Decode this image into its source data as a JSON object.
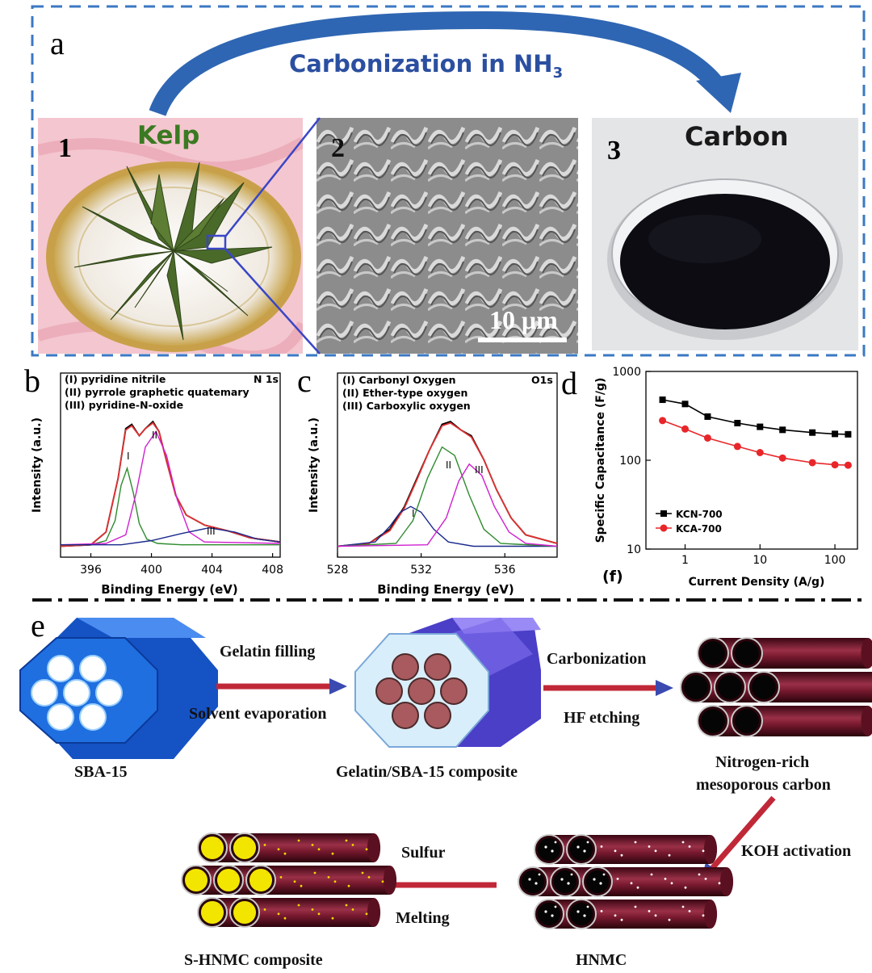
{
  "panel_a": {
    "letter": "a",
    "process": "Carbonization in NH",
    "process_sub": "3",
    "kelp": {
      "number": "1",
      "label": "Kelp"
    },
    "sem": {
      "number": "2",
      "scale": "10 μm"
    },
    "carbon": {
      "number": "3",
      "label": "Carbon"
    }
  },
  "chart_data": [
    {
      "type": "line",
      "panel": "b",
      "corner_label": "N 1s",
      "legend": [
        "(I) pyridine nitrile",
        "(II) pyrrole graphetic quatemary",
        "(III) pyridine-N-oxide"
      ],
      "xlabel": "Binding Energy (eV)",
      "ylabel": "Intensity (a.u.)",
      "x_ticks": [
        "396",
        "400",
        "404",
        "408"
      ],
      "peak_labels": [
        "I",
        "II",
        "III"
      ],
      "xlim": [
        394,
        408.5
      ],
      "series": [
        {
          "color": "#000000",
          "x": [
            394,
            396,
            397,
            397.8,
            398.3,
            398.7,
            399.2,
            399.6,
            400.1,
            400.5,
            401,
            401.6,
            402.3,
            403.5,
            405,
            406.5,
            408.5
          ],
          "y": [
            0.02,
            0.03,
            0.12,
            0.5,
            0.85,
            0.88,
            0.8,
            0.85,
            0.9,
            0.83,
            0.62,
            0.38,
            0.24,
            0.17,
            0.13,
            0.08,
            0.05
          ]
        },
        {
          "color": "#e03030",
          "x": [
            394,
            396,
            397,
            397.8,
            398.3,
            398.7,
            399.2,
            399.6,
            400.1,
            400.5,
            401,
            401.6,
            402.3,
            403.5,
            405,
            406.5,
            408.5
          ],
          "y": [
            0.02,
            0.03,
            0.12,
            0.5,
            0.84,
            0.87,
            0.8,
            0.85,
            0.89,
            0.83,
            0.62,
            0.38,
            0.24,
            0.17,
            0.13,
            0.08,
            0.05
          ]
        },
        {
          "color": "#2e8b2e",
          "x": [
            394,
            396,
            397,
            397.6,
            398,
            398.4,
            398.8,
            399.2,
            399.7,
            400.4,
            402,
            408.5
          ],
          "y": [
            0.03,
            0.03,
            0.06,
            0.2,
            0.45,
            0.57,
            0.4,
            0.18,
            0.07,
            0.04,
            0.03,
            0.03
          ]
        },
        {
          "color": "#d020d0",
          "x": [
            394,
            397,
            398.3,
            399,
            399.6,
            400.3,
            401,
            401.7,
            402.5,
            403.5,
            408.5
          ],
          "y": [
            0.03,
            0.04,
            0.1,
            0.4,
            0.72,
            0.83,
            0.66,
            0.35,
            0.12,
            0.05,
            0.04
          ]
        },
        {
          "color": "#1a2a8c",
          "x": [
            394,
            398,
            400,
            402,
            403.8,
            405.5,
            407,
            408.5
          ],
          "y": [
            0.03,
            0.03,
            0.06,
            0.11,
            0.15,
            0.12,
            0.07,
            0.05
          ]
        }
      ]
    },
    {
      "type": "line",
      "panel": "c",
      "corner_label": "O1s",
      "legend": [
        "(I) Carbonyl Oxygen",
        "(II) Ether-type oxygen",
        "(III) Carboxylic oxygen"
      ],
      "xlabel": "Binding Energy (eV)",
      "ylabel": "Intensity (a.u.)",
      "x_ticks": [
        "528",
        "532",
        "536"
      ],
      "peak_labels": [
        "I",
        "II",
        "III"
      ],
      "xlim": [
        528,
        538.5
      ],
      "series": [
        {
          "color": "#000000",
          "x": [
            528,
            529.5,
            530.5,
            531.2,
            531.8,
            532.4,
            533,
            533.4,
            533.9,
            534.4,
            535,
            535.6,
            536.3,
            537,
            538.5
          ],
          "y": [
            0.02,
            0.04,
            0.14,
            0.3,
            0.5,
            0.7,
            0.88,
            0.9,
            0.84,
            0.8,
            0.63,
            0.42,
            0.22,
            0.1,
            0.04
          ]
        },
        {
          "color": "#e03030",
          "x": [
            528,
            529.5,
            530.5,
            531.2,
            531.8,
            532.4,
            533,
            533.4,
            533.9,
            534.4,
            535,
            535.6,
            536.3,
            537,
            538.5
          ],
          "y": [
            0.02,
            0.04,
            0.13,
            0.29,
            0.49,
            0.7,
            0.87,
            0.89,
            0.84,
            0.79,
            0.63,
            0.42,
            0.22,
            0.1,
            0.04
          ]
        },
        {
          "color": "#1a2a8c",
          "x": [
            528,
            529.8,
            530.5,
            531,
            531.5,
            532,
            532.6,
            533.3,
            534.5,
            538.5
          ],
          "y": [
            0.02,
            0.05,
            0.16,
            0.26,
            0.3,
            0.26,
            0.14,
            0.05,
            0.02,
            0.02
          ]
        },
        {
          "color": "#2e8b2e",
          "x": [
            528,
            530.8,
            531.6,
            532.3,
            533,
            533.6,
            534.3,
            535,
            535.8,
            538.5
          ],
          "y": [
            0.02,
            0.04,
            0.2,
            0.5,
            0.72,
            0.66,
            0.38,
            0.14,
            0.04,
            0.02
          ]
        },
        {
          "color": "#d020d0",
          "x": [
            528,
            532.3,
            533.2,
            533.8,
            534.3,
            534.9,
            535.5,
            536.2,
            537,
            538.5
          ],
          "y": [
            0.02,
            0.03,
            0.22,
            0.48,
            0.6,
            0.52,
            0.3,
            0.12,
            0.04,
            0.02
          ]
        }
      ]
    },
    {
      "type": "line",
      "panel": "d",
      "sub_label": "(f)",
      "xlabel": "Current Density (A/g)",
      "ylabel": "Specific Capacitance (F/g)",
      "x_scale": "log",
      "y_scale": "log",
      "xlim": [
        0.3,
        200
      ],
      "ylim": [
        10,
        1000
      ],
      "x_ticks": [
        "1",
        "10",
        "100"
      ],
      "y_ticks": [
        "10",
        "100",
        "1000"
      ],
      "legend_position": "bottom-left",
      "series": [
        {
          "name": "KCN-700",
          "color": "#000000",
          "marker": "square",
          "x": [
            0.5,
            1,
            2,
            5,
            10,
            20,
            50,
            100,
            150
          ],
          "y": [
            480,
            430,
            310,
            262,
            238,
            220,
            205,
            198,
            196
          ]
        },
        {
          "name": "KCA-700",
          "color": "#e8262a",
          "marker": "circle",
          "x": [
            0.5,
            1,
            2,
            5,
            10,
            20,
            50,
            100,
            150
          ],
          "y": [
            280,
            225,
            178,
            143,
            122,
            106,
            94,
            89,
            88
          ]
        }
      ]
    }
  ],
  "panel_e": {
    "letter": "e",
    "sba15": "SBA-15",
    "gelatin_filling": "Gelatin filling",
    "solvent_evaporation": "Solvent evaporation",
    "composite": "Gelatin/SBA-15 composite",
    "carbonization": "Carbonization",
    "hf_etching": "HF etching",
    "nrmc_line1": "Nitrogen-rich",
    "nrmc_line2": "mesoporous carbon",
    "koh": "KOH activation",
    "hnmc": "HNMC",
    "sulfur": "Sulfur",
    "melting": "Melting",
    "shnmc": "S-HNMC composite"
  },
  "colors": {
    "frame_dash": "#3b78c3",
    "arrow_blue": "#2f66b3",
    "process_text": "#2b4fa0",
    "sba_blue": "#1f6fe0",
    "composite_purple": "#6f5ce0",
    "carbon_tube": "#6a1428",
    "arrow_red": "#c02838",
    "sulfur": "#f2e600"
  }
}
